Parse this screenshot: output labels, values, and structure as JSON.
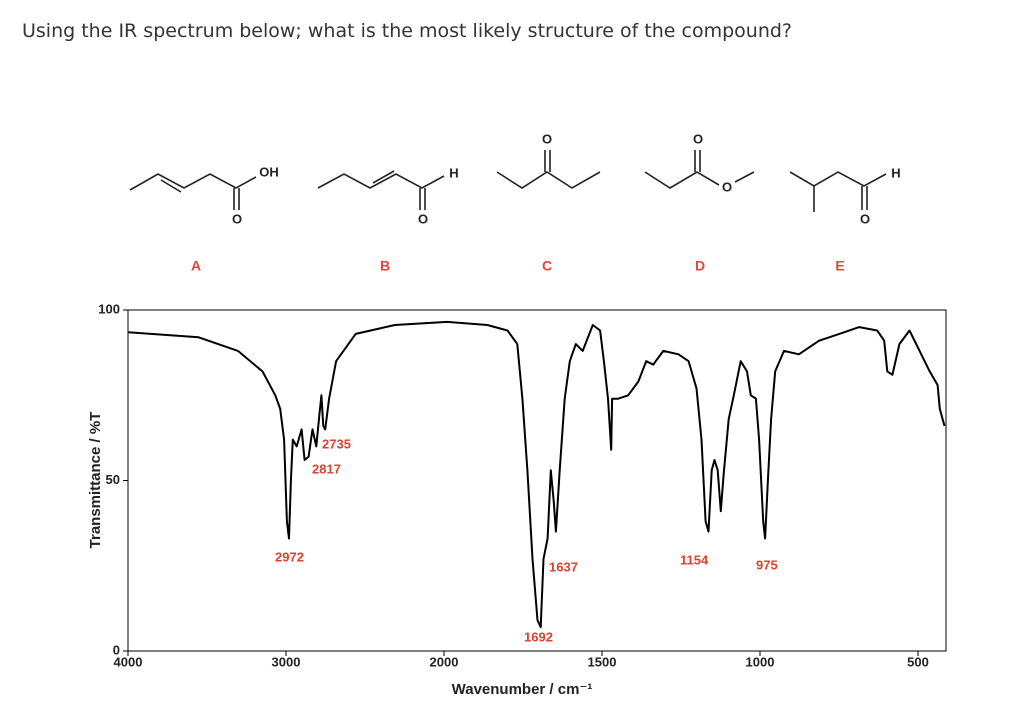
{
  "question": "Using the IR spectrum below; what is the most likely structure of the compound?",
  "structures": [
    {
      "label": "A",
      "atoms": [
        "OH",
        "O"
      ]
    },
    {
      "label": "B",
      "atoms": [
        "H",
        "O"
      ]
    },
    {
      "label": "C",
      "atoms": [
        "O"
      ]
    },
    {
      "label": "D",
      "atoms": [
        "O",
        "O"
      ]
    },
    {
      "label": "E",
      "atoms": [
        "H",
        "O"
      ]
    }
  ],
  "chart_data": {
    "type": "line",
    "xlabel": "Wavenumber / cm⁻¹",
    "ylabel": "Transmittance / %T",
    "color": "#000000",
    "x": [
      4000,
      3553,
      3304,
      3149,
      3068,
      3037,
      3012,
      2994,
      2981,
      2969,
      2957,
      2932,
      2901,
      2882,
      2857,
      2832,
      2808,
      2789,
      2776,
      2764,
      2752,
      2727,
      2683,
      2559,
      2311,
      1990,
      1863,
      1799,
      1768,
      1752,
      1736,
      1720,
      1704,
      1694,
      1685,
      1672,
      1662,
      1653,
      1646,
      1634,
      1618,
      1602,
      1583,
      1561,
      1529,
      1506,
      1494,
      1481,
      1471,
      1468,
      1449,
      1417,
      1385,
      1360,
      1338,
      1306,
      1258,
      1226,
      1201,
      1185,
      1172,
      1163,
      1153,
      1144,
      1134,
      1124,
      1115,
      1099,
      1083,
      1061,
      1041,
      1029,
      1013,
      1003,
      990,
      984,
      975,
      965,
      952,
      924,
      877,
      813,
      749,
      686,
      629,
      607,
      597,
      581,
      559,
      527,
      495,
      463,
      438,
      431,
      416
    ],
    "values": [
      93.5,
      92,
      88,
      82,
      75,
      71,
      62,
      38,
      33,
      50,
      62,
      60,
      65,
      56,
      57,
      65,
      60,
      69,
      75,
      66,
      65,
      74,
      85,
      93,
      95.6,
      96.5,
      95.6,
      94,
      90,
      74,
      53,
      27,
      9,
      7,
      27,
      33,
      53,
      44,
      35,
      53,
      74,
      85,
      90,
      88,
      95.6,
      94,
      85,
      74,
      59,
      74,
      74,
      75,
      79,
      85,
      84,
      88,
      87,
      85,
      77,
      62,
      38,
      35,
      53,
      56,
      53,
      41,
      52,
      68,
      75,
      85,
      82,
      75,
      74,
      62,
      38,
      33,
      50,
      68,
      82,
      88,
      87,
      91,
      93,
      95,
      94,
      91,
      82,
      81,
      90,
      94,
      88,
      82,
      78,
      71,
      66
    ],
    "xlim": [
      4000,
      410
    ],
    "xticks": [
      4000,
      3000,
      2000,
      1500,
      1000,
      500
    ],
    "ylim": [
      0,
      100
    ],
    "yticks": [
      0,
      50,
      100
    ],
    "annotations": [
      "2735",
      "2817",
      "2972",
      "1637",
      "1692",
      "1154",
      "975"
    ]
  }
}
